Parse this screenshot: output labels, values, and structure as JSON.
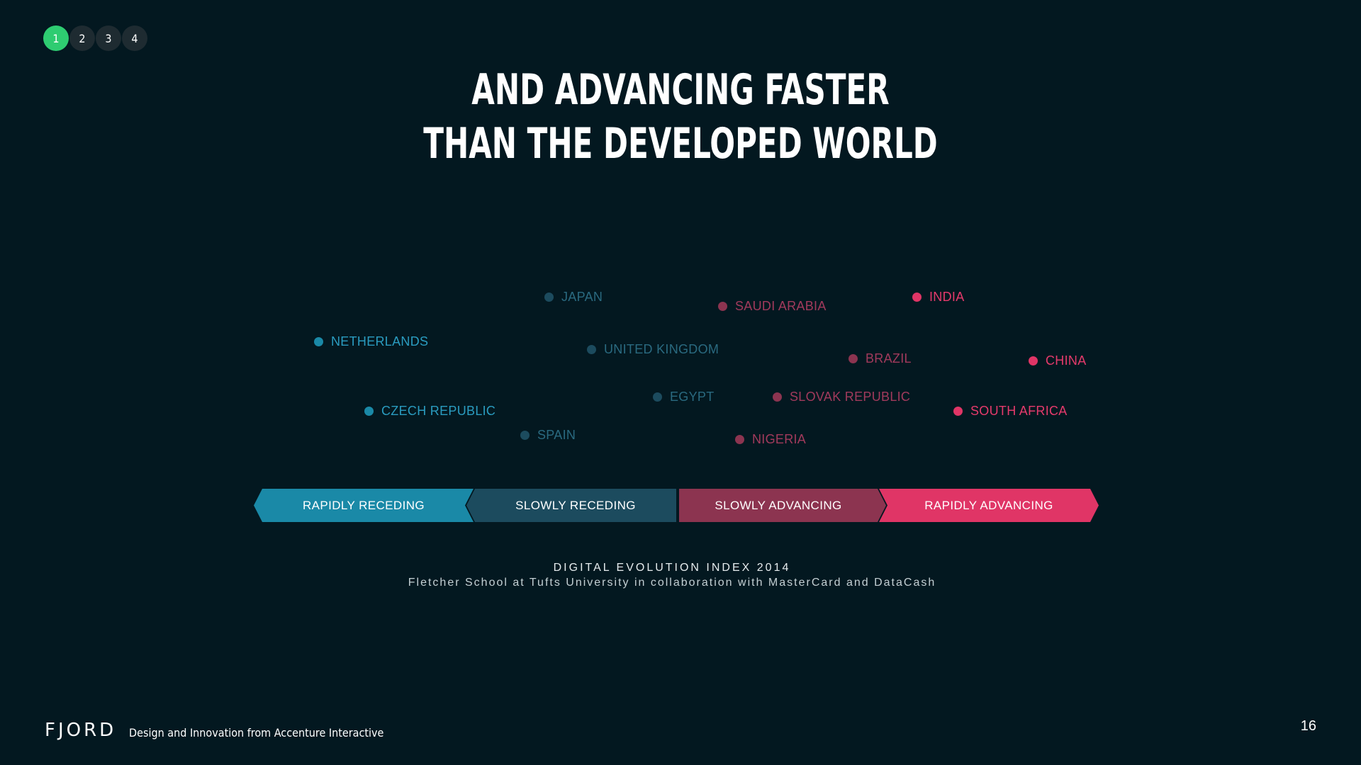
{
  "pager": {
    "items": [
      "1",
      "2",
      "3",
      "4"
    ],
    "active_index": 0,
    "active_color": "#2ecc71",
    "inactive_color": "#1e2b31"
  },
  "title": {
    "line1": "AND ADVANCING FASTER",
    "line2": "THAN THE DEVELOPED WORLD"
  },
  "countries": [
    {
      "name": "JAPAN",
      "category": "slowly_receding"
    },
    {
      "name": "SAUDI ARABIA",
      "category": "slowly_advancing"
    },
    {
      "name": "INDIA",
      "category": "rapidly_advancing"
    },
    {
      "name": "NETHERLANDS",
      "category": "rapidly_receding"
    },
    {
      "name": "UNITED KINGDOM",
      "category": "slowly_receding"
    },
    {
      "name": "BRAZIL",
      "category": "slowly_advancing"
    },
    {
      "name": "CHINA",
      "category": "rapidly_advancing"
    },
    {
      "name": "EGYPT",
      "category": "slowly_receding"
    },
    {
      "name": "SLOVAK REPUBLIC",
      "category": "slowly_advancing"
    },
    {
      "name": "CZECH REPUBLIC",
      "category": "rapidly_receding"
    },
    {
      "name": "SOUTH AFRICA",
      "category": "rapidly_advancing"
    },
    {
      "name": "SPAIN",
      "category": "slowly_receding"
    },
    {
      "name": "NIGERIA",
      "category": "slowly_advancing"
    }
  ],
  "categories": {
    "rapidly_receding": {
      "label": "RAPIDLY RECEDING",
      "color": "#1a89a7",
      "text_color": "#2a9cc0"
    },
    "slowly_receding": {
      "label": "SLOWLY RECEDING",
      "color": "#1c4b5e",
      "text_color": "#2a6a80"
    },
    "slowly_advancing": {
      "label": "SLOWLY ADVANCING",
      "color": "#8c3450",
      "text_color": "#a23a5c"
    },
    "rapidly_advancing": {
      "label": "RAPIDLY ADVANCING",
      "color": "#e03566",
      "text_color": "#e63a6c"
    }
  },
  "source": {
    "title": "DIGITAL EVOLUTION INDEX 2014",
    "subtitle": "Fletcher School at Tufts University in collaboration with MasterCard and DataCash"
  },
  "footer": {
    "logo": "FJORD",
    "tagline": "Design and Innovation from Accenture Interactive",
    "page_number": "16"
  }
}
